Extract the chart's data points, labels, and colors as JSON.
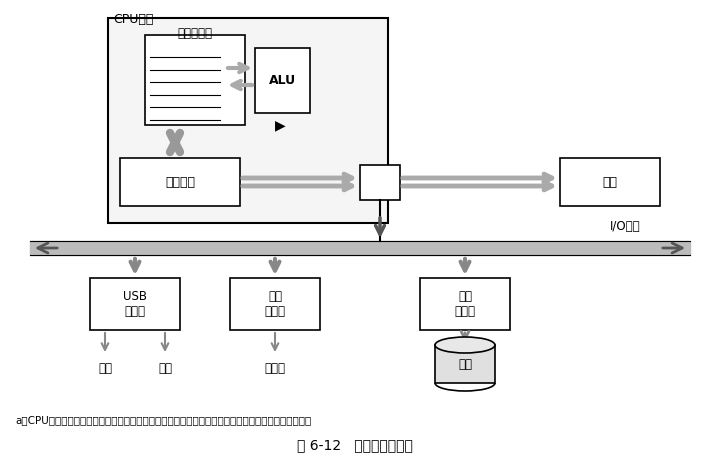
{
  "title": "图 6-12   读一个磁盘扇区",
  "subtitle_a": "a）CPU通过将命令、逻辑块号和目的存储器地址写到与磁盘相关联的存储器映射地址，发起一个碟盘读",
  "cpu_chip_label": "CPU芯片",
  "register_file_label": "寄存器文件",
  "alu_label": "ALU",
  "bus_interface_label": "总线接口",
  "main_memory_label": "主存",
  "io_bus_label": "I/O总线",
  "usb_controller_label": "USB\n控制器",
  "graphics_adapter_label": "图形\n适配器",
  "disk_controller_label": "磁盘\n控制器",
  "mouse_label": "鼠标",
  "keyboard_label": "键盘",
  "monitor_label": "监视器",
  "disk_label": "磁盘",
  "bg_color": "#ffffff",
  "box_color": "#ffffff",
  "box_edge_color": "#000000",
  "arrow_color": "#888888",
  "dark_arrow_color": "#333333"
}
